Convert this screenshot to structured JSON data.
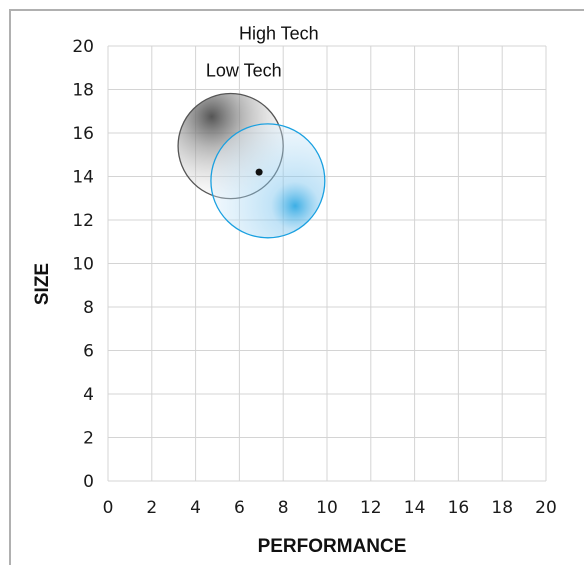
{
  "chart_data": {
    "type": "bubble",
    "xlabel": "PERFORMANCE",
    "ylabel": "SIZE",
    "xlim": [
      0,
      20
    ],
    "ylim": [
      0,
      20
    ],
    "x_ticks": [
      "0",
      "2",
      "4",
      "6",
      "8",
      "10",
      "12",
      "14",
      "16",
      "18",
      "20"
    ],
    "y_ticks": [
      "0",
      "2",
      "4",
      "6",
      "8",
      "10",
      "12",
      "14",
      "16",
      "18",
      "20"
    ],
    "grid": true,
    "series": [
      {
        "name": "Low Tech",
        "center": {
          "x": 5.6,
          "y": 15.4
        },
        "radius": 2.4,
        "hotspot": {
          "x": 4.7,
          "y": 16.7
        },
        "color": "#555555"
      },
      {
        "name": "High Tech",
        "center": {
          "x": 7.3,
          "y": 13.8
        },
        "radius": 2.6,
        "hotspot": {
          "x": 8.6,
          "y": 12.6
        },
        "color": "#1aa0e0"
      }
    ],
    "marker_point": {
      "x": 6.9,
      "y": 14.2
    }
  }
}
